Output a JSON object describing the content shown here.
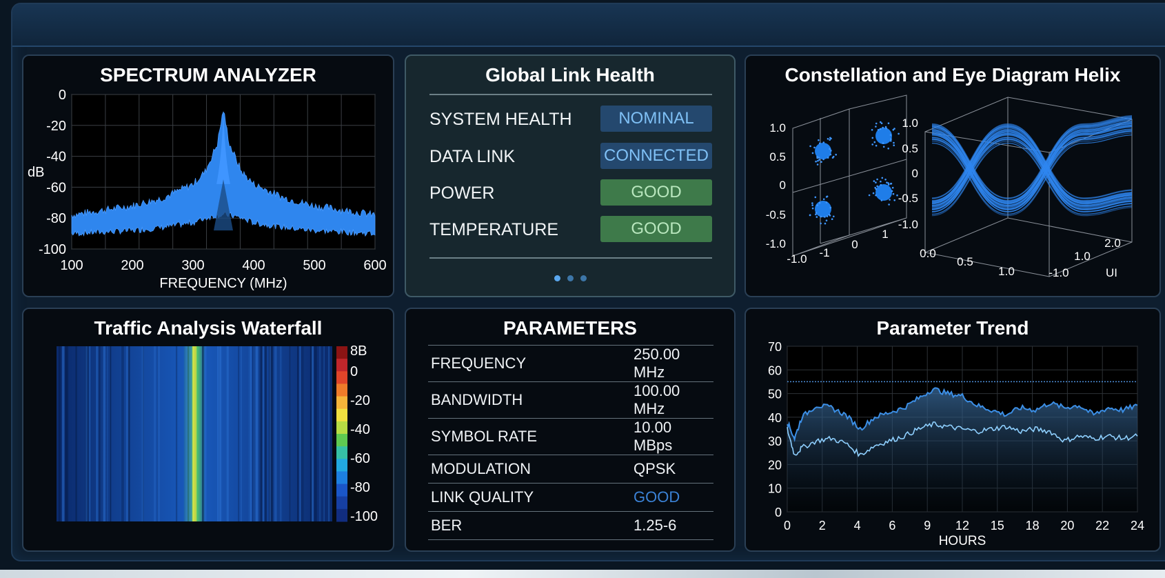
{
  "spectrum": {
    "title": "SPECTRUM ANALYZER",
    "chart_data": {
      "type": "area",
      "title": "SPECTRUM ANALYZER",
      "xlabel": "FREQUENCY (MHz)",
      "ylabel": "dB",
      "xlim": [
        100,
        600
      ],
      "ylim": [
        -100,
        0
      ],
      "x_ticks": [
        "100",
        "200",
        "300",
        "400",
        "500",
        "600"
      ],
      "y_ticks": [
        "0",
        "-20",
        "-40",
        "-60",
        "-80",
        "-100"
      ],
      "grid": true,
      "peak_x": 350,
      "peak_y": -10,
      "series": [
        {
          "x": [
            100,
            150,
            200,
            250,
            300,
            320,
            340,
            350,
            360,
            380,
            400,
            450,
            500,
            550,
            600
          ],
          "upper": [
            -78,
            -75,
            -72,
            -67,
            -58,
            -50,
            -32,
            -10,
            -32,
            -50,
            -58,
            -67,
            -72,
            -75,
            -78
          ],
          "lower": [
            -90,
            -89,
            -88,
            -86,
            -83,
            -80,
            -78,
            -78,
            -78,
            -80,
            -83,
            -86,
            -88,
            -89,
            -90
          ]
        }
      ],
      "color": "#2f86ee"
    }
  },
  "health": {
    "title": "Global Link Health",
    "rows": [
      {
        "label": "SYSTEM HEALTH",
        "status": "NOMINAL"
      },
      {
        "label": "DATA LINK",
        "status": "CONNECTED"
      },
      {
        "label": "POWER",
        "status": "GOOD"
      },
      {
        "label": "TEMPERATURE",
        "status": "GOOD"
      }
    ],
    "page_dots": 3,
    "active_dot": 0
  },
  "constellation": {
    "title": "Constellation and Eye Diagram Helix",
    "chart_data": [
      {
        "type": "scatter",
        "x_ticks": [
          "-1.0",
          "-1",
          "0",
          "1"
        ],
        "y_ticks": [
          "1.0",
          "0.5",
          "0",
          "-0.5",
          "-1.0"
        ],
        "points": [
          {
            "x": -1,
            "y": 1
          },
          {
            "x": 1,
            "y": 1
          },
          {
            "x": -1,
            "y": -1
          },
          {
            "x": 1,
            "y": -1
          }
        ]
      },
      {
        "type": "line",
        "y_ticks": [
          "1.0",
          "0.5",
          "0",
          "-0.5",
          "-1.0"
        ],
        "x_ticks": [
          "0.0",
          "0.5",
          "1.0"
        ],
        "z_ticks": [
          "-1.0",
          "1.0",
          "2.0"
        ],
        "zlabel": "UI"
      }
    ]
  },
  "waterfall": {
    "title": "Traffic Analysis Waterfall",
    "chart_data": {
      "type": "heatmap",
      "colorbar_ticks": [
        "8B",
        "0",
        "-20",
        "-40",
        "-60",
        "-80",
        "-100"
      ],
      "colorbar_range": [
        -100,
        10
      ],
      "hot_band_frequency_fraction": 0.5
    }
  },
  "params": {
    "title": "PARAMETERS",
    "rows": [
      {
        "label": "FREQUENCY",
        "value": "250.00 MHz"
      },
      {
        "label": "BANDWIDTH",
        "value": "100.00 MHz"
      },
      {
        "label": "SYMBOL RATE",
        "value": "10.00 MBps"
      },
      {
        "label": "MODULATION",
        "value": "QPSK"
      },
      {
        "label": "LINK QUALITY",
        "value": "GOOD"
      },
      {
        "label": "BER",
        "value": "1.25-6"
      }
    ],
    "highlight_color": "#3b82d6"
  },
  "trend": {
    "title": "Parameter Trend",
    "chart_data": {
      "type": "line",
      "title": "Parameter Trend",
      "xlabel": "HOURS",
      "ylabel": "",
      "xlim": [
        0,
        24
      ],
      "ylim": [
        0,
        70
      ],
      "x_ticks": [
        "0",
        "2",
        "4",
        "6",
        "9",
        "12",
        "15",
        "18",
        "20",
        "22",
        "24"
      ],
      "y_ticks": [
        "0",
        "10",
        "20",
        "30",
        "40",
        "50",
        "60",
        "70"
      ],
      "grid": true,
      "threshold": 55,
      "series": [
        {
          "x": [
            0,
            0.5,
            1,
            2,
            3,
            4,
            5,
            6,
            7,
            8,
            9,
            10,
            11,
            12,
            13,
            14,
            15,
            16,
            17,
            18,
            19,
            20,
            21,
            22,
            23,
            24
          ],
          "values": [
            38,
            31,
            40,
            45,
            44,
            41,
            35,
            40,
            42,
            44,
            48,
            52,
            50,
            49,
            45,
            43,
            41,
            44,
            43,
            46,
            44,
            45,
            41,
            44,
            43,
            45
          ]
        },
        {
          "x": [
            0,
            0.5,
            1,
            2,
            3,
            4,
            5,
            6,
            7,
            8,
            9,
            10,
            11,
            12,
            13,
            14,
            15,
            16,
            17,
            18,
            19,
            20,
            21,
            22,
            23,
            24
          ],
          "values": [
            35,
            24,
            27,
            30,
            31,
            29,
            24,
            28,
            30,
            32,
            35,
            37,
            36,
            35,
            34,
            35,
            36,
            34,
            35,
            34,
            30,
            32,
            31,
            32,
            31,
            32
          ]
        }
      ],
      "colors": [
        "#3c8fe6",
        "#8fd0ff"
      ]
    }
  }
}
